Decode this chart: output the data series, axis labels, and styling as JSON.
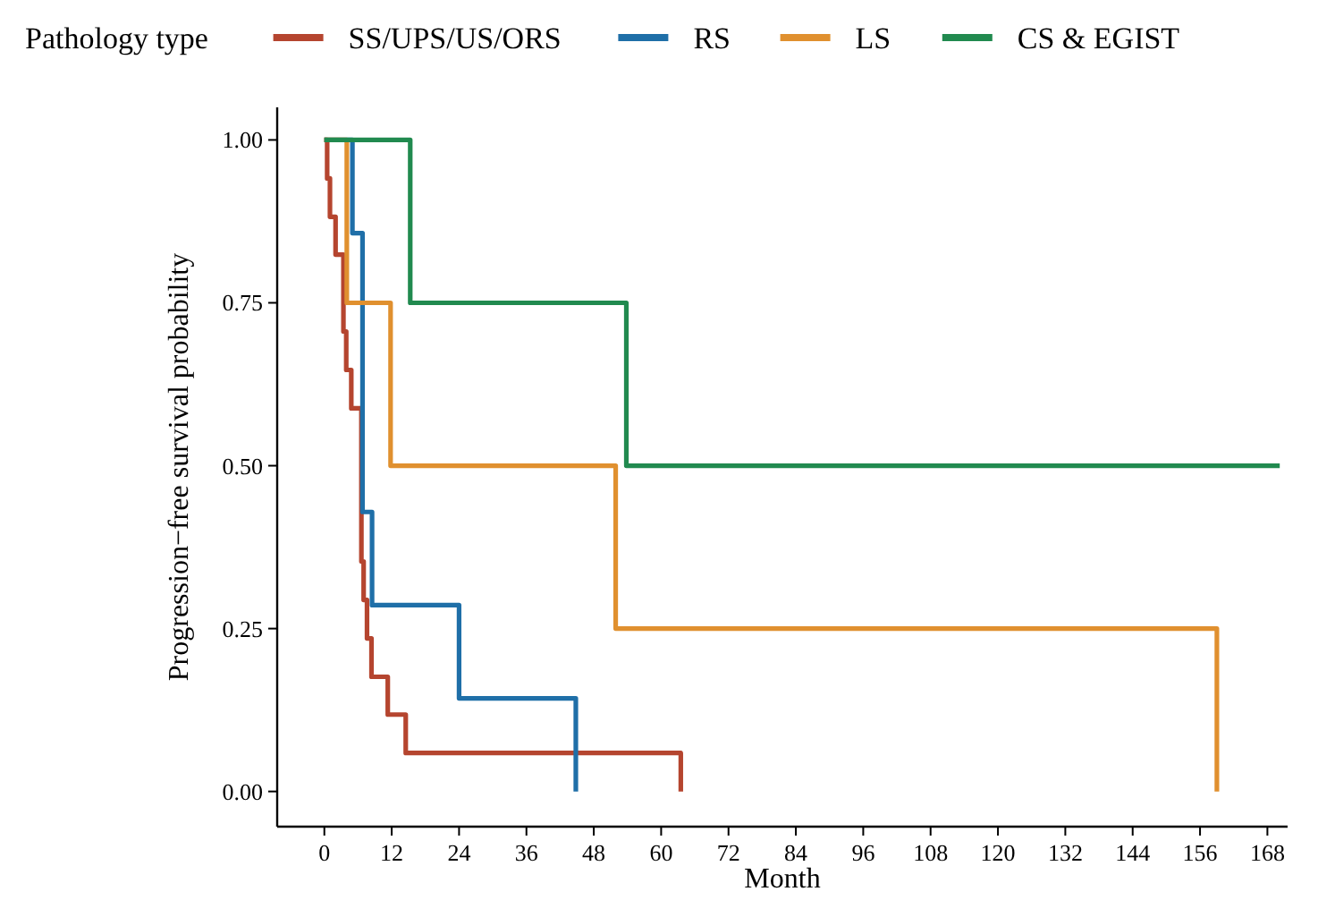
{
  "chart_data": {
    "type": "step",
    "xlabel": "Month",
    "ylabel": "Progression−free survival probability",
    "legend_title": "Pathology type",
    "legend": "top",
    "grid": false,
    "xlim": [
      -8.4,
      171.6
    ],
    "ylim": [
      -0.054,
      1.05
    ],
    "xticks": [
      0,
      12,
      24,
      36,
      48,
      60,
      72,
      84,
      96,
      108,
      120,
      132,
      144,
      156,
      168
    ],
    "yticks": [
      {
        "value": 0,
        "label": "0.00"
      },
      {
        "value": 0.25,
        "label": "0.25"
      },
      {
        "value": 0.5,
        "label": "0.50"
      },
      {
        "value": 0.75,
        "label": "0.75"
      },
      {
        "value": 1,
        "label": "1.00"
      }
    ],
    "series": [
      {
        "name": "SS/UPS/US/ORS",
        "color": "#b5452f",
        "x": [
          0,
          0.5,
          1,
          2,
          3.4,
          3.9,
          4.8,
          6.6,
          7,
          7.6,
          8.4,
          11.3,
          14.5,
          63.5
        ],
        "values": [
          1,
          0.941,
          0.882,
          0.824,
          0.706,
          0.647,
          0.588,
          0.353,
          0.294,
          0.235,
          0.176,
          0.118,
          0.059,
          0
        ]
      },
      {
        "name": "RS",
        "color": "#1f6fa8",
        "x": [
          0,
          5,
          6.8,
          8.5,
          24,
          44.8
        ],
        "values": [
          1,
          0.857,
          0.429,
          0.286,
          0.143,
          0
        ]
      },
      {
        "name": "LS",
        "color": "#e0902f",
        "x": [
          0,
          4,
          11.8,
          51.9,
          159
        ],
        "values": [
          1,
          0.75,
          0.5,
          0.25,
          0
        ]
      },
      {
        "name": "CS & EGIST",
        "color": "#218a4f",
        "x": [
          0,
          15.3,
          53.8,
          170.2
        ],
        "values": [
          1,
          0.75,
          0.5,
          0.5
        ]
      }
    ]
  }
}
